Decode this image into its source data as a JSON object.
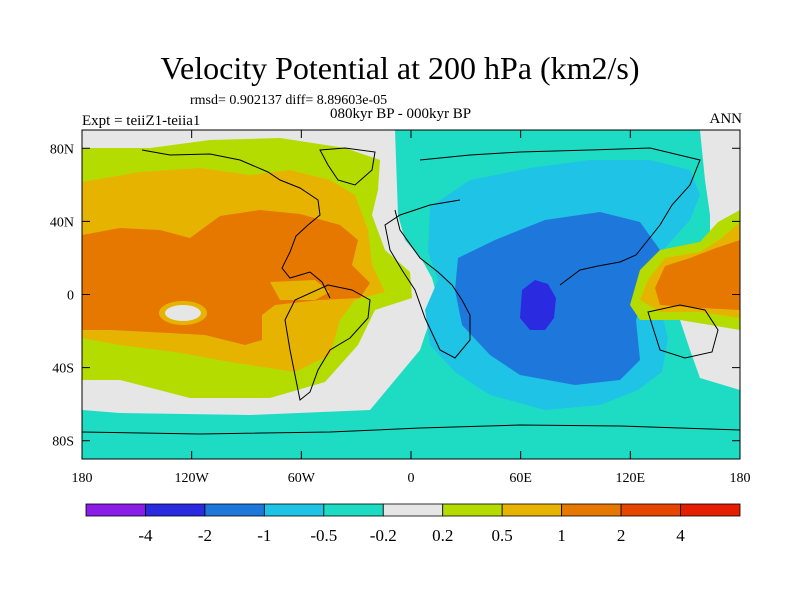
{
  "title": "Velocity Potential at 200 hPa (km2/s)",
  "stats_line": "rmsd= 0.902137 diff= 8.89603e-05",
  "period_line": "080kyr BP - 000kyr BP",
  "experiment_line": "Expt = teiiZ1-teiia1",
  "season": "ANN",
  "map": {
    "projection": "cylindrical-equidistant",
    "lon_range": [
      -180,
      180
    ],
    "lat_range": [
      -90,
      90
    ],
    "lat_ticks": [
      {
        "value": 80,
        "label": "80N"
      },
      {
        "value": 40,
        "label": "40N"
      },
      {
        "value": 0,
        "label": "0"
      },
      {
        "value": -40,
        "label": "40S"
      },
      {
        "value": -80,
        "label": "80S"
      }
    ],
    "lon_ticks": [
      {
        "value": -180,
        "label": "180"
      },
      {
        "value": -120,
        "label": "120W"
      },
      {
        "value": -60,
        "label": "60W"
      },
      {
        "value": 0,
        "label": "0"
      },
      {
        "value": 60,
        "label": "60E"
      },
      {
        "value": 120,
        "label": "120E"
      },
      {
        "value": 180,
        "label": "180"
      }
    ]
  },
  "colorbar": {
    "colors": [
      "#8a1ee6",
      "#2a2ae0",
      "#1e78dc",
      "#1ec3e6",
      "#1edcc3",
      "#e6e6e6",
      "#b4dc00",
      "#e6b400",
      "#e67800",
      "#e64600",
      "#e61e00"
    ],
    "labels": [
      "-4",
      "-2",
      "-1",
      "-0.5",
      "-0.2",
      "0.2",
      "0.5",
      "1",
      "2",
      "4"
    ]
  }
}
